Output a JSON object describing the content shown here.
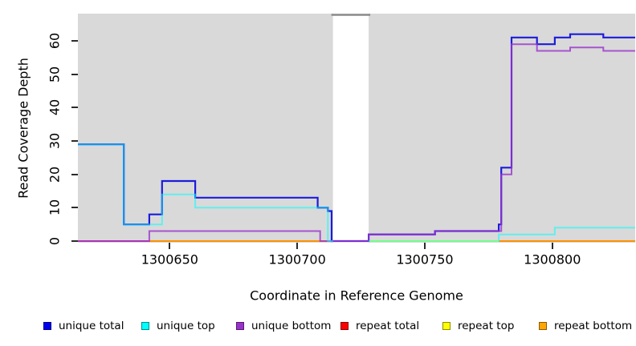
{
  "figure": {
    "xlabel": "Coordinate in Reference Genome",
    "ylabel": "Read Coverage Depth"
  },
  "chart_data": {
    "type": "line",
    "subtype": "step-coverage",
    "title": "",
    "xlabel": "Coordinate in Reference Genome",
    "ylabel": "Read Coverage Depth",
    "xlim": [
      1300614,
      1300832.5
    ],
    "ylim": [
      0,
      68
    ],
    "grid": false,
    "legend_position": "bottom",
    "plot_background": "#d9d9d9",
    "background_regions": [
      {
        "name": "covered-region-left",
        "x0": 1300614,
        "x1": 1300714
      },
      {
        "name": "covered-region-right",
        "x0": 1300728,
        "x1": 1300832.5
      }
    ],
    "gap": {
      "x0": 1300714,
      "x1": 1300728,
      "top_line_color": "#8a8a8a"
    },
    "x_ticks": [
      {
        "v": 1300650,
        "label": "1300650"
      },
      {
        "v": 1300700,
        "label": "1300700"
      },
      {
        "v": 1300750,
        "label": "1300750"
      },
      {
        "v": 1300800,
        "label": "1300800"
      }
    ],
    "y_ticks": [
      {
        "v": 0,
        "label": "0"
      },
      {
        "v": 10,
        "label": "10"
      },
      {
        "v": 20,
        "label": "20"
      },
      {
        "v": 30,
        "label": "30"
      },
      {
        "v": 40,
        "label": "40"
      },
      {
        "v": 50,
        "label": "50"
      },
      {
        "v": 60,
        "label": "60"
      }
    ],
    "series": [
      {
        "name": "repeat total",
        "color": "#ff0000",
        "stroke": "#ff0033",
        "opacity": 0.75,
        "width": 2,
        "segments": [
          [
            [
              1300614,
              0
            ],
            [
              1300642,
              0
            ]
          ],
          [
            [
              1300709,
              0
            ],
            [
              1300714,
              0
            ]
          ]
        ]
      },
      {
        "name": "repeat top",
        "color": "#ffff00",
        "stroke": "#ffff00",
        "opacity": 1,
        "width": 2,
        "segments": [
          [
            [
              1300728,
              0
            ],
            [
              1300779,
              0
            ]
          ]
        ]
      },
      {
        "name": "repeat bottom",
        "color": "#ffa500",
        "stroke": "#ff9000",
        "opacity": 1,
        "width": 2,
        "segments": [
          [
            [
              1300642,
              0
            ],
            [
              1300714,
              0
            ]
          ],
          [
            [
              1300779,
              0
            ],
            [
              1300832.5,
              0
            ]
          ]
        ]
      },
      {
        "name": "unique total",
        "color": "#0000ee",
        "stroke": "#1c1cdb",
        "opacity": 1,
        "width": 2.2,
        "segments": [
          [
            [
              1300614,
              29
            ],
            [
              1300632,
              5
            ],
            [
              1300642,
              8
            ],
            [
              1300647,
              18
            ],
            [
              1300660,
              13
            ],
            [
              1300708,
              10
            ],
            [
              1300712,
              9
            ],
            [
              1300713.5,
              0
            ],
            [
              1300728,
              2
            ],
            [
              1300754,
              3
            ],
            [
              1300779,
              5
            ],
            [
              1300780,
              22
            ],
            [
              1300784,
              61
            ],
            [
              1300794,
              59
            ],
            [
              1300801,
              61
            ],
            [
              1300807,
              62
            ],
            [
              1300820,
              61
            ],
            [
              1300832.5,
              61
            ]
          ]
        ]
      },
      {
        "name": "unique bottom",
        "color": "#9932cc",
        "stroke": "#9932cc",
        "opacity": 0.8,
        "width": 2,
        "segments": [
          [
            [
              1300614,
              0
            ],
            [
              1300642,
              3
            ],
            [
              1300709,
              0
            ],
            [
              1300728,
              2
            ],
            [
              1300754,
              3
            ],
            [
              1300780,
              20
            ],
            [
              1300784,
              59
            ],
            [
              1300794,
              57
            ],
            [
              1300807,
              58
            ],
            [
              1300820,
              57
            ],
            [
              1300832.5,
              57
            ]
          ]
        ]
      },
      {
        "name": "unique top",
        "color": "#00ffff",
        "stroke": "#00ffff",
        "opacity": 0.55,
        "width": 2,
        "segments": [
          [
            [
              1300614,
              29
            ],
            [
              1300632,
              5
            ],
            [
              1300647,
              14
            ],
            [
              1300660,
              10
            ],
            [
              1300712,
              0
            ],
            [
              1300714,
              0
            ]
          ],
          [
            [
              1300728,
              0
            ],
            [
              1300779,
              2
            ],
            [
              1300801,
              4
            ],
            [
              1300832.5,
              4
            ]
          ]
        ]
      }
    ]
  },
  "legend": {
    "items": [
      {
        "label": "unique total",
        "color": "#0000ee"
      },
      {
        "label": "unique top",
        "color": "#00ffff"
      },
      {
        "label": "unique bottom",
        "color": "#9932cc"
      },
      {
        "label": "repeat total",
        "color": "#ff0000"
      },
      {
        "label": "repeat top",
        "color": "#ffff00"
      },
      {
        "label": "repeat bottom",
        "color": "#ffa500"
      }
    ]
  }
}
